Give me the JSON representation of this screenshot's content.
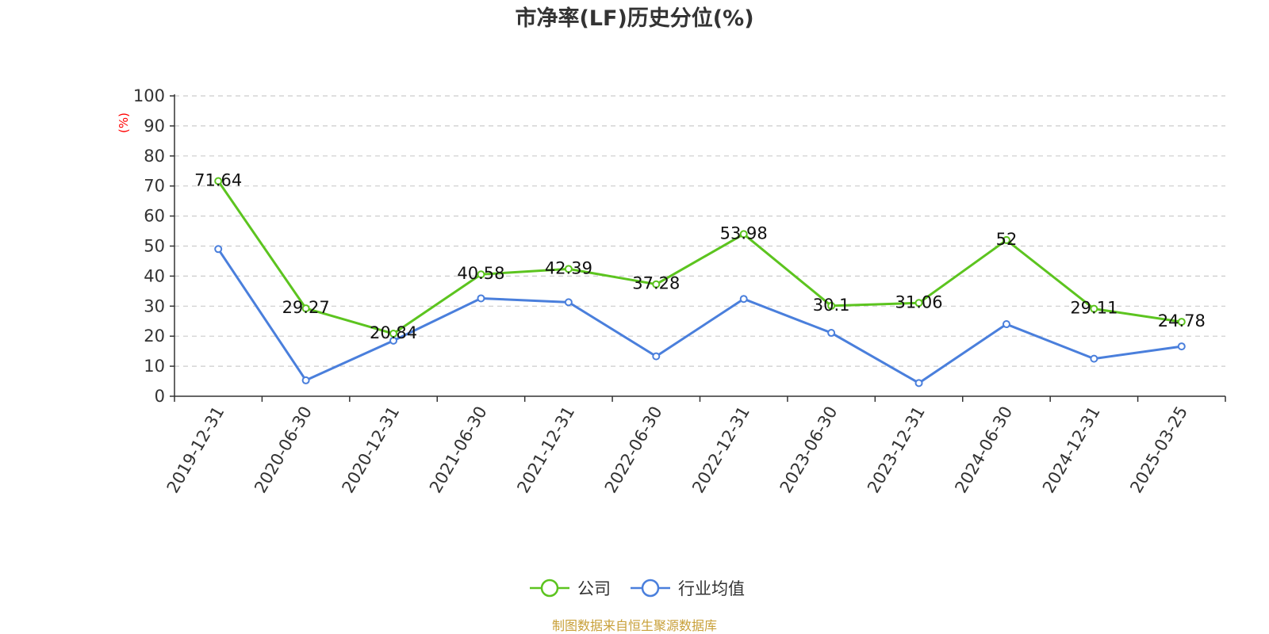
{
  "chart_data": {
    "type": "line",
    "title": "市净率(LF)历史分位(%)",
    "ylabel": "(%)",
    "ylim": [
      0,
      100
    ],
    "yticks": [
      0,
      10,
      20,
      30,
      40,
      50,
      60,
      70,
      80,
      90,
      100
    ],
    "grid": true,
    "legend_position": "bottom",
    "categories": [
      "2019-12-31",
      "2020-06-30",
      "2020-12-31",
      "2021-06-30",
      "2021-12-31",
      "2022-06-30",
      "2022-12-31",
      "2023-06-30",
      "2023-12-31",
      "2024-06-30",
      "2024-12-31",
      "2025-03-25"
    ],
    "series": [
      {
        "name": "公司",
        "color": "#5cc41f",
        "show_labels": true,
        "values": [
          71.64,
          29.27,
          20.84,
          40.58,
          42.39,
          37.28,
          53.98,
          30.1,
          31.06,
          52,
          29.11,
          24.78
        ]
      },
      {
        "name": "行业均值",
        "color": "#4a7fdc",
        "show_labels": false,
        "values": [
          49,
          5.3,
          18.5,
          32.6,
          31.3,
          13.3,
          32.4,
          21.1,
          4.4,
          24,
          12.5,
          16.6
        ]
      }
    ]
  },
  "footer": {
    "source": "制图数据来自恒生聚源数据库"
  }
}
